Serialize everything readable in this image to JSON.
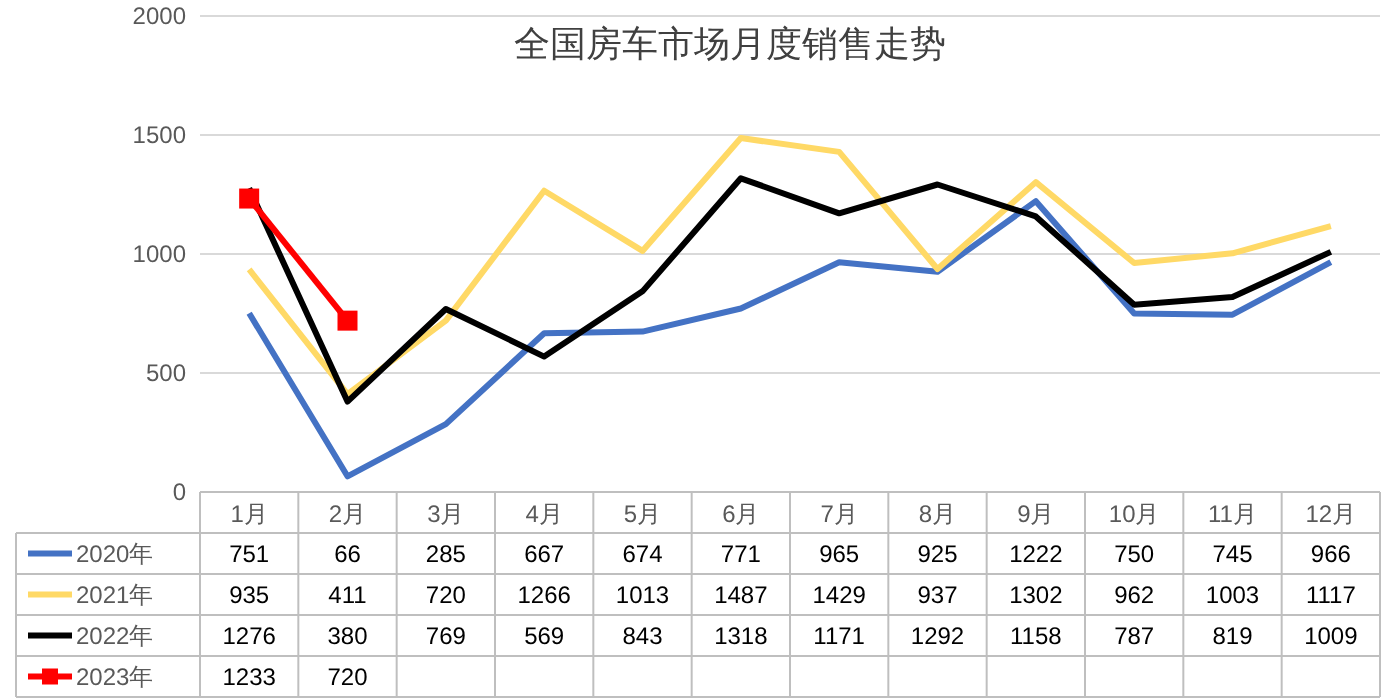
{
  "chart_data": {
    "type": "line",
    "title": "全国房车市场月度销售走势",
    "categories": [
      "1月",
      "2月",
      "3月",
      "4月",
      "5月",
      "6月",
      "7月",
      "8月",
      "9月",
      "10月",
      "11月",
      "12月"
    ],
    "series": [
      {
        "name": "2020年",
        "color": "#4472c4",
        "marker": "none",
        "values": [
          751,
          66,
          285,
          667,
          674,
          771,
          965,
          925,
          1222,
          750,
          745,
          966
        ]
      },
      {
        "name": "2021年",
        "color": "#ffd966",
        "marker": "none",
        "values": [
          935,
          411,
          720,
          1266,
          1013,
          1487,
          1429,
          937,
          1302,
          962,
          1003,
          1117
        ]
      },
      {
        "name": "2022年",
        "color": "#000000",
        "marker": "none",
        "values": [
          1276,
          380,
          769,
          569,
          843,
          1318,
          1171,
          1292,
          1158,
          787,
          819,
          1009
        ]
      },
      {
        "name": "2023年",
        "color": "#ff0000",
        "marker": "square",
        "values": [
          1233,
          720,
          null,
          null,
          null,
          null,
          null,
          null,
          null,
          null,
          null,
          null
        ]
      }
    ],
    "ylim": [
      0,
      2000
    ],
    "yticks": [
      0,
      500,
      1000,
      1500,
      2000
    ],
    "grid": "y",
    "legend": "bottom",
    "data_labels": true,
    "line_style": "solid"
  }
}
